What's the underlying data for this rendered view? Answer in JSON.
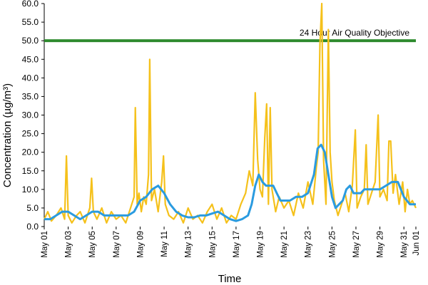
{
  "chart_data": {
    "type": "line",
    "title": "",
    "xlabel": "Time",
    "ylabel": "Concentration (µg/m³)",
    "ylim": [
      0,
      60
    ],
    "yticks": [
      "0.0",
      "5.0",
      "10.0",
      "15.0",
      "20.0",
      "25.0",
      "30.0",
      "35.0",
      "40.0",
      "45.0",
      "50.0",
      "55.0",
      "60.0"
    ],
    "xlim": [
      "2016-05-01",
      "2016-06-01"
    ],
    "xticks": [
      "May 01",
      "May 03",
      "May 05",
      "May 07",
      "May 09",
      "May 11",
      "May 13",
      "May 15",
      "May 17",
      "May 19",
      "May 21",
      "May 23",
      "May 25",
      "May 27",
      "May 29",
      "May 31",
      "Jun 01"
    ],
    "grid": false,
    "legend": "none",
    "colors": {
      "hourly": "#f5c11b",
      "running_mean": "#2a9be0",
      "objective": "#2e8b2e"
    },
    "annotations": [
      {
        "text": "24 Hour Air Quality Objective",
        "y": 50
      }
    ],
    "series": [
      {
        "x": [
          1.0,
          1.3,
          1.6,
          2.0,
          2.4,
          2.7,
          2.85,
          3.0,
          3.3,
          3.7,
          4.0,
          4.4,
          4.8,
          4.95,
          5.1,
          5.4,
          5.8,
          6.2,
          6.6,
          7.0,
          7.4,
          7.8,
          8.2,
          8.5,
          8.6,
          8.75,
          8.9,
          9.1,
          9.3,
          9.5,
          9.7,
          9.8,
          9.95,
          10.2,
          10.5,
          10.8,
          10.95,
          11.1,
          11.4,
          11.8,
          12.2,
          12.6,
          13.0,
          13.4,
          13.8,
          14.2,
          14.6,
          15.0,
          15.4,
          15.8,
          16.2,
          16.6,
          17.0,
          17.4,
          17.8,
          18.1,
          18.4,
          18.6,
          18.8,
          19.0,
          19.2,
          19.4,
          19.55,
          19.7,
          19.85,
          20.0,
          20.3,
          20.6,
          21.0,
          21.4,
          21.8,
          22.2,
          22.6,
          23.0,
          23.4,
          23.7,
          23.85,
          24.0,
          24.15,
          24.3,
          24.5,
          24.7,
          24.85,
          25.0,
          25.2,
          25.5,
          25.8,
          26.1,
          26.4,
          26.7,
          26.95,
          27.1,
          27.4,
          27.7,
          27.85,
          28.0,
          28.3,
          28.6,
          28.85,
          29.0,
          29.3,
          29.6,
          29.75,
          29.9,
          30.1,
          30.3,
          30.6,
          30.9,
          31.1,
          31.3,
          31.5,
          31.7,
          32.0
        ],
        "values": [
          2.0,
          4.0,
          1.5,
          3.0,
          5.0,
          2.0,
          19.0,
          3.0,
          1.0,
          3.0,
          4.0,
          1.0,
          5.0,
          13.0,
          4.0,
          2.0,
          5.0,
          1.0,
          4.0,
          2.0,
          3.0,
          1.0,
          5.0,
          8.0,
          32.0,
          6.0,
          9.0,
          4.0,
          8.0,
          6.0,
          14.0,
          45.0,
          7.0,
          10.0,
          4.0,
          12.0,
          19.0,
          6.0,
          3.0,
          2.0,
          4.0,
          1.0,
          5.0,
          2.0,
          3.0,
          1.0,
          4.0,
          6.0,
          2.0,
          5.0,
          1.0,
          3.0,
          2.0,
          6.0,
          9.0,
          15.0,
          11.0,
          36.0,
          18.0,
          10.0,
          8.0,
          24.0,
          33.0,
          6.0,
          32.0,
          10.0,
          4.0,
          8.0,
          5.0,
          7.0,
          3.0,
          9.0,
          5.0,
          12.0,
          6.0,
          16.0,
          20.0,
          49.0,
          62.0,
          18.0,
          6.0,
          53.0,
          20.0,
          12.0,
          7.0,
          3.0,
          6.0,
          9.0,
          4.0,
          11.0,
          26.0,
          5.0,
          8.0,
          10.0,
          22.0,
          6.0,
          9.0,
          12.0,
          30.0,
          8.0,
          10.0,
          7.0,
          23.0,
          23.0,
          9.0,
          14.0,
          6.0,
          12.0,
          4.0,
          10.0,
          6.0,
          7.0,
          5.0
        ]
      },
      {
        "x": [
          1.0,
          1.5,
          2.0,
          2.5,
          3.0,
          3.5,
          4.0,
          4.5,
          5.0,
          5.5,
          6.0,
          6.5,
          7.0,
          7.5,
          8.0,
          8.5,
          9.0,
          9.5,
          10.0,
          10.5,
          11.0,
          11.5,
          12.0,
          12.5,
          13.0,
          13.5,
          14.0,
          14.5,
          15.0,
          15.5,
          16.0,
          16.5,
          17.0,
          17.5,
          18.0,
          18.3,
          18.6,
          18.9,
          19.2,
          19.5,
          19.8,
          20.1,
          20.4,
          20.7,
          21.0,
          21.5,
          22.0,
          22.5,
          23.0,
          23.5,
          23.8,
          24.1,
          24.4,
          24.7,
          25.0,
          25.3,
          25.6,
          25.9,
          26.2,
          26.5,
          26.8,
          27.1,
          27.4,
          27.7,
          28.0,
          28.5,
          29.0,
          29.5,
          30.0,
          30.5,
          31.0,
          31.5,
          32.0
        ],
        "values": [
          2.0,
          2.0,
          3.0,
          4.0,
          4.0,
          3.0,
          2.0,
          3.0,
          4.0,
          4.0,
          3.0,
          3.0,
          3.0,
          3.0,
          3.0,
          4.0,
          7.0,
          8.0,
          10.0,
          11.0,
          9.0,
          6.0,
          4.0,
          3.0,
          2.5,
          2.5,
          3.0,
          3.0,
          3.5,
          4.0,
          3.0,
          2.0,
          1.5,
          2.0,
          3.0,
          6.0,
          11.0,
          14.0,
          12.0,
          11.0,
          11.0,
          11.0,
          9.0,
          7.0,
          7.0,
          7.0,
          8.0,
          8.0,
          9.0,
          14.0,
          21.0,
          22.0,
          20.0,
          14.0,
          8.0,
          5.0,
          6.0,
          7.0,
          10.0,
          11.0,
          9.0,
          9.0,
          9.0,
          10.0,
          10.0,
          10.0,
          10.0,
          11.0,
          12.0,
          12.0,
          8.0,
          6.0,
          6.0
        ]
      }
    ]
  }
}
